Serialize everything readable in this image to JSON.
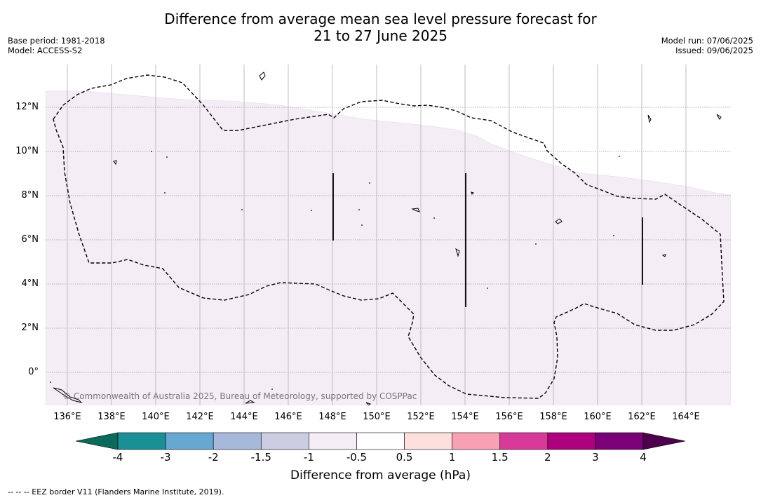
{
  "title": {
    "line1": "Difference from average mean sea level pressure forecast for",
    "line2": "21 to 27 June 2025"
  },
  "meta_left": {
    "base_period": "Base period: 1981-2018",
    "model": "Model: ACCESS-S2"
  },
  "meta_right": {
    "model_run": "Model run: 07/06/2025",
    "issued": "Issued: 09/06/2025"
  },
  "map": {
    "latitude_labels": [
      "12°N",
      "10°N",
      "8°N",
      "6°N",
      "4°N",
      "2°N",
      "0°"
    ],
    "longitude_labels": [
      "136°E",
      "138°E",
      "140°E",
      "142°E",
      "144°E",
      "146°E",
      "148°E",
      "150°E",
      "152°E",
      "154°E",
      "156°E",
      "158°E",
      "160°E",
      "162°E",
      "164°E"
    ],
    "lon_range": [
      135,
      166
    ],
    "lat_range": [
      -1.5,
      14
    ],
    "anomaly_fill_color": "#f5edf6",
    "copyright": "© Commonwealth of Australia 2025, Bureau of Meteorology, supported by COSPPac"
  },
  "colorbar": {
    "title": "Difference from average (hPa)",
    "tick_labels": [
      "-4",
      "-3",
      "-2",
      "-1.5",
      "-1",
      "-0.5",
      "0.5",
      "1",
      "1.5",
      "2",
      "3",
      "4"
    ],
    "colors": [
      "#1b8f96",
      "#67a8d3",
      "#a7b9da",
      "#cccde2",
      "#f5edf6",
      "#ffffff",
      "#fde0dd",
      "#f9a1b4",
      "#d73a99",
      "#ad017e",
      "#7a0177"
    ],
    "under_color": "#0b6b5b",
    "over_color": "#4d004b"
  },
  "footnote": "--  --  -- EEZ border V11 (Flanders Marine Institute, 2019)."
}
